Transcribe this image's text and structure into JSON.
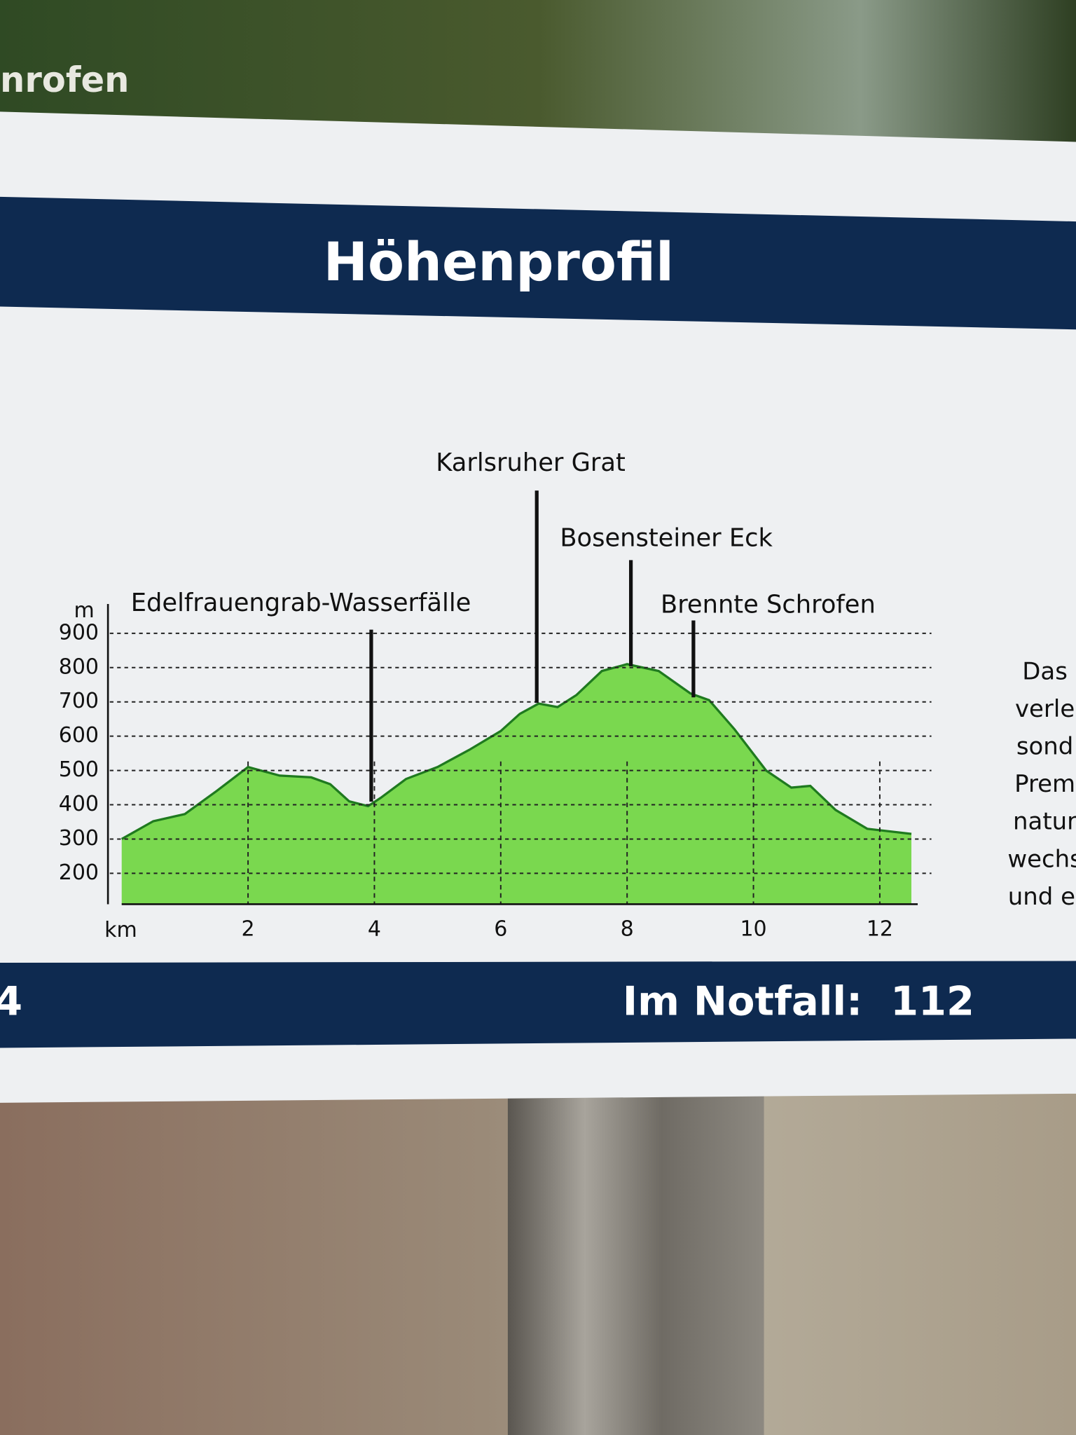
{
  "sign": {
    "top_label": "nrofen",
    "footer_left": "4",
    "footer": "Im Notfall:  112",
    "side_text": [
      "Das",
      "verle",
      "sond",
      "Prem",
      "natur",
      "wechs",
      "und ei"
    ]
  },
  "chart_data": {
    "type": "area",
    "title": "Höhenprofil",
    "x_label": "km",
    "y_label": "m",
    "x": [
      0,
      0.5,
      1,
      1.5,
      2,
      2.5,
      3,
      3.3,
      3.6,
      3.9,
      4.1,
      4.5,
      5,
      5.5,
      6,
      6.3,
      6.6,
      6.9,
      7.2,
      7.6,
      8,
      8.5,
      9,
      9.3,
      9.7,
      10.2,
      10.6,
      10.9,
      11.3,
      11.8,
      12.5
    ],
    "values": [
      300,
      352,
      373,
      440,
      510,
      485,
      480,
      460,
      410,
      396,
      420,
      475,
      510,
      560,
      615,
      665,
      695,
      685,
      720,
      790,
      810,
      790,
      725,
      705,
      620,
      500,
      450,
      455,
      385,
      330,
      315
    ],
    "color": "#7ad84f",
    "line_color": "#1f7a1f",
    "xlim": [
      0,
      12.6
    ],
    "xticks": [
      2,
      4,
      6,
      8,
      10,
      12
    ],
    "ylim": [
      110,
      900
    ],
    "yticks": [
      200,
      300,
      400,
      500,
      600,
      700,
      800,
      900
    ],
    "grid": true,
    "annotations": [
      {
        "text": "Edelfrauengrab-Wasserfälle",
        "x": 3.95
      },
      {
        "text": "Karlsruher Grat",
        "x": 6.57
      },
      {
        "text": "Bosensteiner Eck",
        "x": 8.06
      },
      {
        "text": "Brennte Schrofen",
        "x": 9.05
      }
    ]
  }
}
